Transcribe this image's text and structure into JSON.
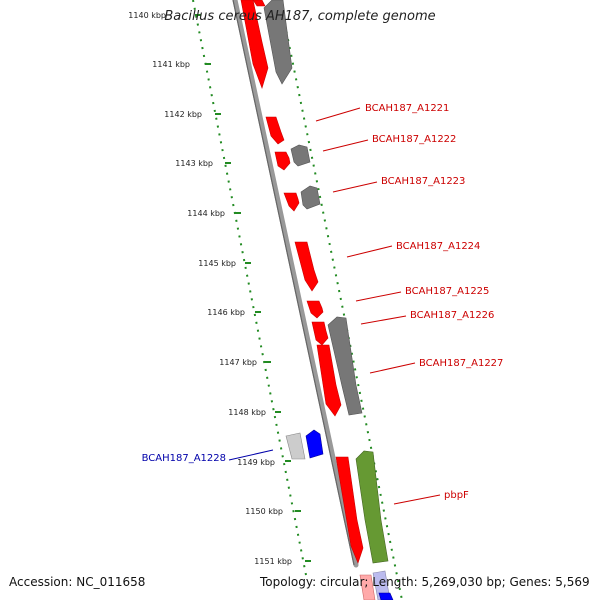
{
  "title": "Bacillus cereus AH187, complete genome",
  "footer": {
    "accession": "Accession: NC_011658",
    "summary": "Topology: circular; Length: 5,269,030 bp; Genes: 5,569"
  },
  "colors": {
    "forward_gene": "#ff0000",
    "reverse_gene": "#666666",
    "other_forward": "#0000ff",
    "other_reverse": "#bbbbbb",
    "highlight": "#669933",
    "scale_dots": "#228b22",
    "forward_label": "#cc0000",
    "other_label": "#0000aa"
  },
  "scale_ticks": [
    "1140 kbp",
    "1141 kbp",
    "1142 kbp",
    "1143 kbp",
    "1144 kbp",
    "1145 kbp",
    "1146 kbp",
    "1147 kbp",
    "1148 kbp",
    "1149 kbp",
    "1150 kbp",
    "1151 kbp"
  ],
  "gene_labels": [
    {
      "text": "BCAH187_A1221",
      "kind": "forward"
    },
    {
      "text": "BCAH187_A1222",
      "kind": "forward"
    },
    {
      "text": "BCAH187_A1223",
      "kind": "forward"
    },
    {
      "text": "BCAH187_A1224",
      "kind": "forward"
    },
    {
      "text": "BCAH187_A1225",
      "kind": "forward"
    },
    {
      "text": "BCAH187_A1226",
      "kind": "forward"
    },
    {
      "text": "BCAH187_A1227",
      "kind": "forward"
    },
    {
      "text": "BCAH187_A1228",
      "kind": "other"
    },
    {
      "text": "pbpF",
      "kind": "forward"
    }
  ]
}
